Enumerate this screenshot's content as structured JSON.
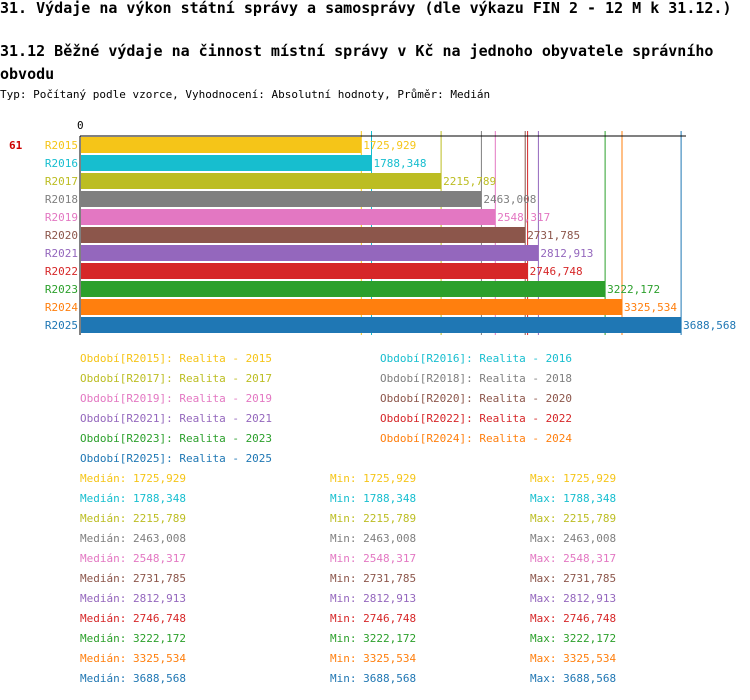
{
  "header": {
    "title": "31. Výdaje na výkon státní správy a samosprávy (dle výkazu FIN 2 - 12 M k 31.12.)",
    "subtitle": "31.12 Běžné výdaje na činnost místní správy v Kč na jednoho obyvatele správního obvodu",
    "type_line": "Typ: Počítaný podle vzorce, Vyhodnocení: Absolutní hodnoty, Průměr: Medián"
  },
  "chart_data": {
    "type": "bar",
    "orientation": "horizontal",
    "axis_zero_label": "0",
    "row_marker": "61",
    "categories": [
      "R2015",
      "R2016",
      "R2017",
      "R2018",
      "R2019",
      "R2020",
      "R2021",
      "R2022",
      "R2023",
      "R2024",
      "R2025"
    ],
    "values": [
      1725.929,
      1788.348,
      2215.789,
      2463.008,
      2548.317,
      2731.785,
      2812.913,
      2746.748,
      3222.172,
      3325.534,
      3688.568
    ],
    "value_labels": [
      "1725,929",
      "1788,348",
      "2215,789",
      "2463,008",
      "2548,317",
      "2731,785",
      "2812,913",
      "2746,748",
      "3222,172",
      "3325,534",
      "3688,568"
    ],
    "colors": [
      "#f5c518",
      "#17becf",
      "#bcbd22",
      "#7f7f7f",
      "#e377c2",
      "#8c564b",
      "#9467bd",
      "#d62728",
      "#2ca02c",
      "#ff7f0e",
      "#1f77b4"
    ],
    "xlim": [
      0,
      3700
    ]
  },
  "legend": [
    {
      "label": "Období[R2015]: Realita - 2015",
      "color": "#f5c518"
    },
    {
      "label": "Období[R2016]: Realita - 2016",
      "color": "#17becf"
    },
    {
      "label": "Období[R2017]: Realita - 2017",
      "color": "#bcbd22"
    },
    {
      "label": "Období[R2018]: Realita - 2018",
      "color": "#7f7f7f"
    },
    {
      "label": "Období[R2019]: Realita - 2019",
      "color": "#e377c2"
    },
    {
      "label": "Období[R2020]: Realita - 2020",
      "color": "#8c564b"
    },
    {
      "label": "Období[R2021]: Realita - 2021",
      "color": "#9467bd"
    },
    {
      "label": "Období[R2022]: Realita - 2022",
      "color": "#d62728"
    },
    {
      "label": "Období[R2023]: Realita - 2023",
      "color": "#2ca02c"
    },
    {
      "label": "Období[R2024]: Realita - 2024",
      "color": "#ff7f0e"
    },
    {
      "label": "Období[R2025]: Realita - 2025",
      "color": "#1f77b4"
    }
  ],
  "stats": [
    {
      "median": "Medián: 1725,929",
      "min": "Min: 1725,929",
      "max": "Max: 1725,929",
      "color": "#f5c518"
    },
    {
      "median": "Medián: 1788,348",
      "min": "Min: 1788,348",
      "max": "Max: 1788,348",
      "color": "#17becf"
    },
    {
      "median": "Medián: 2215,789",
      "min": "Min: 2215,789",
      "max": "Max: 2215,789",
      "color": "#bcbd22"
    },
    {
      "median": "Medián: 2463,008",
      "min": "Min: 2463,008",
      "max": "Max: 2463,008",
      "color": "#7f7f7f"
    },
    {
      "median": "Medián: 2548,317",
      "min": "Min: 2548,317",
      "max": "Max: 2548,317",
      "color": "#e377c2"
    },
    {
      "median": "Medián: 2731,785",
      "min": "Min: 2731,785",
      "max": "Max: 2731,785",
      "color": "#8c564b"
    },
    {
      "median": "Medián: 2812,913",
      "min": "Min: 2812,913",
      "max": "Max: 2812,913",
      "color": "#9467bd"
    },
    {
      "median": "Medián: 2746,748",
      "min": "Min: 2746,748",
      "max": "Max: 2746,748",
      "color": "#d62728"
    },
    {
      "median": "Medián: 3222,172",
      "min": "Min: 3222,172",
      "max": "Max: 3222,172",
      "color": "#2ca02c"
    },
    {
      "median": "Medián: 3325,534",
      "min": "Min: 3325,534",
      "max": "Max: 3325,534",
      "color": "#ff7f0e"
    },
    {
      "median": "Medián: 3688,568",
      "min": "Min: 3688,568",
      "max": "Max: 3688,568",
      "color": "#1f77b4"
    }
  ]
}
